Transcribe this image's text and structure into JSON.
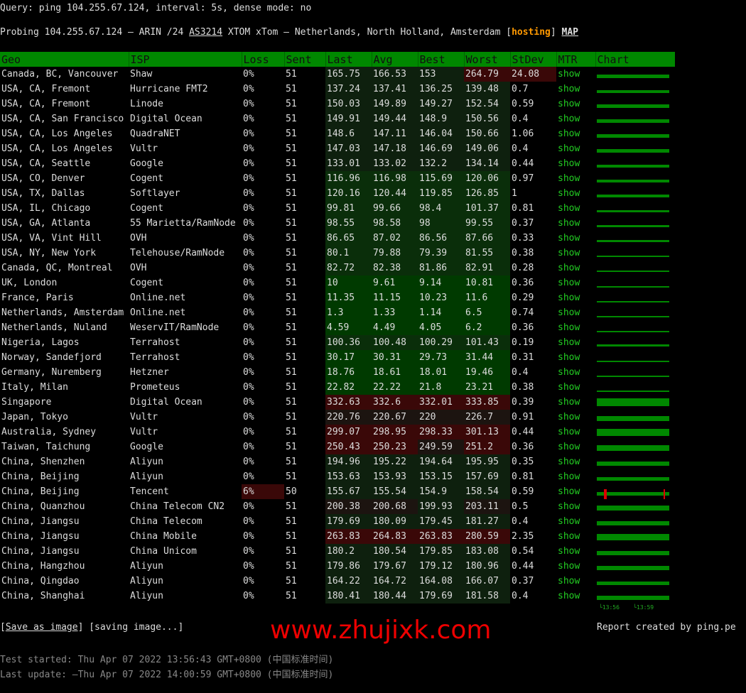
{
  "query": "Query: ping 104.255.67.124, interval: 5s, dense mode: no",
  "probe": {
    "prefix": "Probing 104.255.67.124 — ARIN /24 ",
    "asn": "AS3214",
    "middle": " XTOM xTom — Netherlands, North Holland, Amsterdam [",
    "hosting": "hosting",
    "close": "] ",
    "map": "MAP"
  },
  "headers": [
    "Geo",
    "ISP",
    "Loss",
    "Sent",
    "Last",
    "Avg",
    "Best",
    "Worst",
    "StDev",
    "MTR",
    "Chart"
  ],
  "mtr_label": "show",
  "colors": {
    "header": "#008800",
    "good": "#003800",
    "bad": "#3a0808",
    "mtr": "#22cc22"
  },
  "rows": [
    [
      "Canada, BC, Vancouver",
      "Shaw",
      "0%",
      "51",
      "165.75",
      "166.53",
      "153",
      "264.79",
      "24.08"
    ],
    [
      "USA, CA, Fremont",
      "Hurricane FMT2",
      "0%",
      "51",
      "137.24",
      "137.41",
      "136.25",
      "139.48",
      "0.7"
    ],
    [
      "USA, CA, Fremont",
      "Linode",
      "0%",
      "51",
      "150.03",
      "149.89",
      "149.27",
      "152.54",
      "0.59"
    ],
    [
      "USA, CA, San Francisco",
      "Digital Ocean",
      "0%",
      "51",
      "149.91",
      "149.44",
      "148.9",
      "150.56",
      "0.4"
    ],
    [
      "USA, CA, Los Angeles",
      "QuadraNET",
      "0%",
      "51",
      "148.6",
      "147.11",
      "146.04",
      "150.66",
      "1.06"
    ],
    [
      "USA, CA, Los Angeles",
      "Vultr",
      "0%",
      "51",
      "147.03",
      "147.18",
      "146.69",
      "149.06",
      "0.4"
    ],
    [
      "USA, CA, Seattle",
      "Google",
      "0%",
      "51",
      "133.01",
      "133.02",
      "132.2",
      "134.14",
      "0.44"
    ],
    [
      "USA, CO, Denver",
      "Cogent",
      "0%",
      "51",
      "116.96",
      "116.98",
      "115.69",
      "120.06",
      "0.97"
    ],
    [
      "USA, TX, Dallas",
      "Softlayer",
      "0%",
      "51",
      "120.16",
      "120.44",
      "119.85",
      "126.85",
      "1"
    ],
    [
      "USA, IL, Chicago",
      "Cogent",
      "0%",
      "51",
      "99.81",
      "99.66",
      "98.4",
      "101.37",
      "0.81"
    ],
    [
      "USA, GA, Atlanta",
      "55 Marietta/RamNode",
      "0%",
      "51",
      "98.55",
      "98.58",
      "98",
      "99.55",
      "0.37"
    ],
    [
      "USA, VA, Vint Hill",
      "OVH",
      "0%",
      "51",
      "86.65",
      "87.02",
      "86.56",
      "87.66",
      "0.33"
    ],
    [
      "USA, NY, New York",
      "Telehouse/RamNode",
      "0%",
      "51",
      "80.1",
      "79.88",
      "79.39",
      "81.55",
      "0.38"
    ],
    [
      "Canada, QC, Montreal",
      "OVH",
      "0%",
      "51",
      "82.72",
      "82.38",
      "81.86",
      "82.91",
      "0.28"
    ],
    [
      "UK, London",
      "Cogent",
      "0%",
      "51",
      "10",
      "9.61",
      "9.14",
      "10.81",
      "0.36"
    ],
    [
      "France, Paris",
      "Online.net",
      "0%",
      "51",
      "11.35",
      "11.15",
      "10.23",
      "11.6",
      "0.29"
    ],
    [
      "Netherlands, Amsterdam",
      "Online.net",
      "0%",
      "51",
      "1.3",
      "1.33",
      "1.14",
      "6.5",
      "0.74"
    ],
    [
      "Netherlands, Nuland",
      "WeservIT/RamNode",
      "0%",
      "51",
      "4.59",
      "4.49",
      "4.05",
      "6.2",
      "0.36"
    ],
    [
      "Nigeria, Lagos",
      "Terrahost",
      "0%",
      "51",
      "100.36",
      "100.48",
      "100.29",
      "101.43",
      "0.19"
    ],
    [
      "Norway, Sandefjord",
      "Terrahost",
      "0%",
      "51",
      "30.17",
      "30.31",
      "29.73",
      "31.44",
      "0.31"
    ],
    [
      "Germany, Nuremberg",
      "Hetzner",
      "0%",
      "51",
      "18.76",
      "18.61",
      "18.01",
      "19.46",
      "0.4"
    ],
    [
      "Italy, Milan",
      "Prometeus",
      "0%",
      "51",
      "22.82",
      "22.22",
      "21.8",
      "23.21",
      "0.38"
    ],
    [
      "Singapore",
      "Digital Ocean",
      "0%",
      "51",
      "332.63",
      "332.6",
      "332.01",
      "333.85",
      "0.39"
    ],
    [
      "Japan, Tokyo",
      "Vultr",
      "0%",
      "51",
      "220.76",
      "220.67",
      "220",
      "226.7",
      "0.91"
    ],
    [
      "Australia, Sydney",
      "Vultr",
      "0%",
      "51",
      "299.07",
      "298.95",
      "298.33",
      "301.13",
      "0.44"
    ],
    [
      "Taiwan, Taichung",
      "Google",
      "0%",
      "51",
      "250.43",
      "250.23",
      "249.59",
      "251.2",
      "0.36"
    ],
    [
      "China, Shenzhen",
      "Aliyun",
      "0%",
      "51",
      "194.96",
      "195.22",
      "194.64",
      "195.95",
      "0.35"
    ],
    [
      "China, Beijing",
      "Aliyun",
      "0%",
      "51",
      "153.63",
      "153.93",
      "153.15",
      "157.69",
      "0.81"
    ],
    [
      "China, Beijing",
      "Tencent",
      "6%",
      "50",
      "155.67",
      "155.54",
      "154.9",
      "158.54",
      "0.59"
    ],
    [
      "China, Quanzhou",
      "China Telecom CN2",
      "0%",
      "51",
      "200.38",
      "200.68",
      "199.93",
      "203.11",
      "0.5"
    ],
    [
      "China, Jiangsu",
      "China Telecom",
      "0%",
      "51",
      "179.69",
      "180.09",
      "179.45",
      "181.27",
      "0.4"
    ],
    [
      "China, Jiangsu",
      "China Mobile",
      "0%",
      "51",
      "263.83",
      "264.83",
      "263.83",
      "280.59",
      "2.35"
    ],
    [
      "China, Jiangsu",
      "China Unicom",
      "0%",
      "51",
      "180.2",
      "180.54",
      "179.85",
      "183.08",
      "0.54"
    ],
    [
      "China, Hangzhou",
      "Aliyun",
      "0%",
      "51",
      "179.86",
      "179.67",
      "179.12",
      "180.96",
      "0.44"
    ],
    [
      "China, Qingdao",
      "Aliyun",
      "0%",
      "51",
      "164.22",
      "164.72",
      "164.08",
      "166.07",
      "0.37"
    ],
    [
      "China, Shanghai",
      "Aliyun",
      "0%",
      "51",
      "180.41",
      "180.44",
      "179.69",
      "181.58",
      "0.4"
    ]
  ],
  "chart_axis": [
    "13:56",
    "13:59"
  ],
  "footer": {
    "save": "Save as image",
    "saving": "[saving image...]",
    "report": "Report created by ping.pe",
    "started": "Test started: Thu Apr 07 2022 13:56:43 GMT+0800 (中国标准时间)",
    "updated": "Last update: —Thu Apr 07 2022 14:00:59 GMT+0800 (中国标准时间)"
  },
  "watermark": "www.zhujixk.com"
}
